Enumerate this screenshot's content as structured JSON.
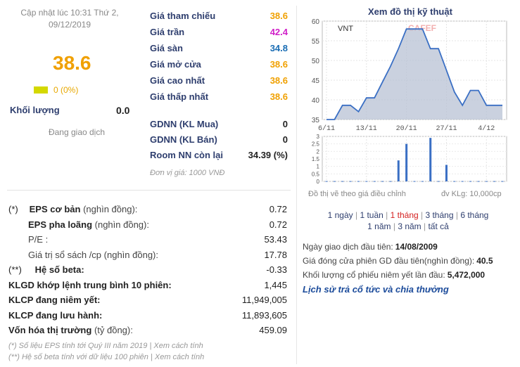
{
  "update": {
    "line1": "Cập nhật lúc 10:31 Thứ 2,",
    "line2": "09/12/2019"
  },
  "price": {
    "current": "38.6",
    "change": "0 (0%)"
  },
  "volume": {
    "label": "Khối lượng",
    "value": "0.0"
  },
  "status": "Đang giao dịch",
  "price_list": [
    {
      "label": "Giá tham chiếu",
      "value": "38.6",
      "color": "#f0a000"
    },
    {
      "label": "Giá trần",
      "value": "42.4",
      "color": "#d020c8"
    },
    {
      "label": "Giá sàn",
      "value": "34.8",
      "color": "#1a6db4"
    },
    {
      "label": "Giá mở cửa",
      "value": "38.6",
      "color": "#f0a000"
    },
    {
      "label": "Giá cao nhất",
      "value": "38.6",
      "color": "#f0a000"
    },
    {
      "label": "Giá thấp nhất",
      "value": "38.6",
      "color": "#f0a000"
    }
  ],
  "foreign": [
    {
      "label": "GDNN (KL Mua)",
      "value": "0"
    },
    {
      "label": "GDNN (KL Bán)",
      "value": "0"
    },
    {
      "label": "Room NN còn lại",
      "value": "34.39 (%)"
    }
  ],
  "unit_note": "Đơn vị giá: 1000 VNĐ",
  "financials": [
    {
      "prefix": "(*)",
      "name": "EPS cơ bản",
      "unit": "(nghìn đồng):",
      "value": "0.72"
    },
    {
      "prefix": "",
      "name": "EPS pha loãng",
      "unit": "(nghìn đồng):",
      "value": "0.72"
    },
    {
      "prefix": "",
      "name": "",
      "unit": "P/E :",
      "value": "53.43"
    },
    {
      "prefix": "",
      "name": "",
      "unit": "Giá trị sổ sách /cp (nghìn đồng):",
      "value": "17.78"
    },
    {
      "prefix": "(**)",
      "name": "Hệ số beta:",
      "unit": "",
      "value": "-0.33"
    },
    {
      "prefix": "",
      "name": "KLGD khớp lệnh trung bình 10 phiên:",
      "unit": "",
      "value": "1,445"
    },
    {
      "prefix": "",
      "name": "KLCP đang niêm yết:",
      "unit": "",
      "value": "11,949,005"
    },
    {
      "prefix": "",
      "name": "KLCP đang lưu hành:",
      "unit": "",
      "value": "11,893,605"
    },
    {
      "prefix": "",
      "name": "Vốn hóa thị trường",
      "unit": "(tỷ đồng):",
      "value": "459.09"
    }
  ],
  "footnotes": [
    "(*) Số liệu EPS tính tới Quý III năm 2019 | Xem cách tính",
    "(**) Hệ số beta tính với dữ liệu 100 phiên | Xem cách tính"
  ],
  "chart": {
    "title": "Xem đồ thị kỹ thuật",
    "symbol": "VNT",
    "watermark": "CAFEF",
    "note_left": "Đồ thị vẽ theo giá điều chỉnh",
    "note_right": "đv KLg: 10,000cp",
    "colors": {
      "line": "#3a6fc4",
      "fill": "#b8c2d4",
      "volume": "#3a6fc4"
    }
  },
  "chart_data": {
    "type": "line",
    "yticks": [
      "60",
      "55",
      "50",
      "45",
      "40",
      "35"
    ],
    "ylim": [
      35,
      60
    ],
    "xticks": [
      "6/11",
      "13/11",
      "20/11",
      "27/11",
      "4/12"
    ],
    "price": [
      35,
      35,
      38.6,
      38.6,
      37,
      40.5,
      40.5,
      44.5,
      48.5,
      53,
      58,
      58,
      58,
      53,
      53,
      47.5,
      42,
      38.6,
      42.4,
      42.4,
      38.6,
      38.6,
      38.6
    ],
    "volume_yticks": [
      "3",
      "2.5",
      "2",
      "1.5",
      "1",
      "0.5",
      "0"
    ],
    "volume_ylim": [
      0,
      3
    ],
    "volume": [
      0.02,
      0.02,
      0.02,
      0.02,
      0.02,
      0.02,
      0.02,
      0.02,
      0.02,
      1.4,
      2.5,
      0.02,
      0.02,
      2.9,
      0.02,
      1.1,
      0.02,
      0.02,
      0.02,
      0.02,
      0.02,
      0.02,
      0.02
    ]
  },
  "periods": {
    "row1": [
      {
        "label": "1 ngày",
        "selected": false
      },
      {
        "label": "1 tuần",
        "selected": false
      },
      {
        "label": "1 tháng",
        "selected": true
      },
      {
        "label": "3 tháng",
        "selected": false
      },
      {
        "label": "6 tháng",
        "selected": false
      }
    ],
    "row2": [
      {
        "label": "1 năm",
        "selected": false
      },
      {
        "label": "3 năm",
        "selected": false
      },
      {
        "label": "tất cả",
        "selected": false
      }
    ]
  },
  "listing": [
    {
      "label": "Ngày giao dịch đầu tiên:",
      "value": "14/08/2009"
    },
    {
      "label": "Giá đóng cửa phiên GD đầu tiên(nghìn đồng):",
      "value": "40.5"
    },
    {
      "label": "Khối lượng cổ phiếu niêm yết lần đầu:",
      "value": "5,472,000"
    }
  ],
  "history_link": "Lịch sử trả cổ tức và chia thưởng"
}
